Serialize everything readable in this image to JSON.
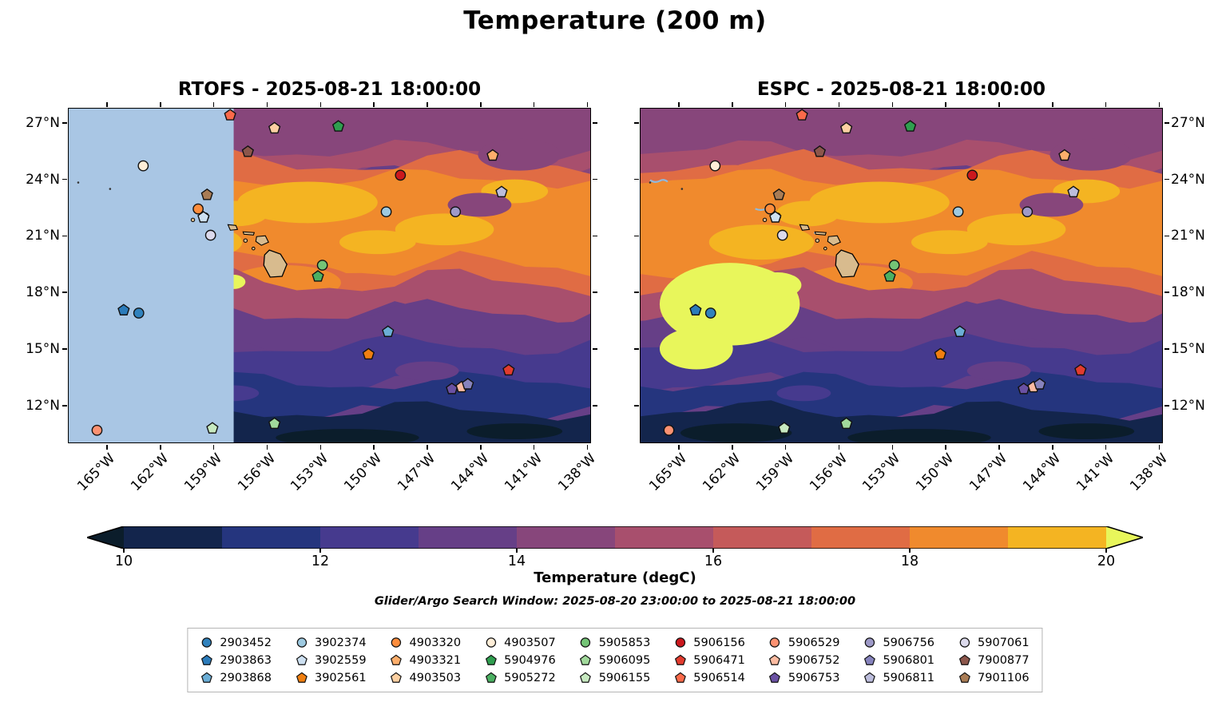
{
  "figure": {
    "title": "Temperature (200 m)",
    "search_window": "Glider/Argo Search Window: 2025-08-20 23:00:00 to 2025-08-21 18:00:00"
  },
  "panels": [
    {
      "id": "rtofs",
      "title": "RTOFS - 2025-08-21 18:00:00",
      "no_data_mask": {
        "east_limit_lon_w": 157.9,
        "color": "#a9c6e4"
      }
    },
    {
      "id": "espc",
      "title": "ESPC - 2025-08-21 18:00:00"
    }
  ],
  "axes": {
    "lon_tick_labels": [
      "165°W",
      "162°W",
      "159°W",
      "156°W",
      "153°W",
      "150°W",
      "147°W",
      "144°W",
      "141°W",
      "138°W"
    ],
    "lon_tick_values_w": [
      165,
      162,
      159,
      156,
      153,
      150,
      147,
      144,
      141,
      138
    ],
    "lat_tick_labels": [
      "12°N",
      "15°N",
      "18°N",
      "21°N",
      "24°N",
      "27°N"
    ],
    "lat_tick_values_n": [
      12,
      15,
      18,
      21,
      24,
      27
    ],
    "lon_range_w": [
      167.2,
      137.8
    ],
    "lat_range_n": [
      10.0,
      27.8
    ]
  },
  "colorbar": {
    "label": "Temperature (degC)",
    "tick_labels": [
      "10",
      "12",
      "14",
      "16",
      "18",
      "20"
    ],
    "tick_values": [
      10,
      12,
      14,
      16,
      18,
      20
    ],
    "range": [
      10,
      20
    ],
    "extend": "both",
    "under_color": "#0b1d2b",
    "over_color": "#e8f65b",
    "band_colors": [
      "#13254c",
      "#25357e",
      "#463a8e",
      "#663f87",
      "#87467b",
      "#a84f6d",
      "#c55a5a",
      "#e06c44",
      "#f08a2d",
      "#f4b422"
    ]
  },
  "legend": {
    "entries": [
      {
        "id": "2903452",
        "shape": "circle",
        "color": "#3182bd"
      },
      {
        "id": "2903863",
        "shape": "pentagon",
        "color": "#2b7bba"
      },
      {
        "id": "2903868",
        "shape": "pentagon",
        "color": "#6baed6"
      },
      {
        "id": "3902374",
        "shape": "circle",
        "color": "#9ecae1"
      },
      {
        "id": "3902559",
        "shape": "pentagon",
        "color": "#cde0f1"
      },
      {
        "id": "3902561",
        "shape": "pentagon",
        "color": "#f07f10"
      },
      {
        "id": "4903320",
        "shape": "circle",
        "color": "#fd8d3c"
      },
      {
        "id": "4903321",
        "shape": "pentagon",
        "color": "#fdae6b"
      },
      {
        "id": "4903503",
        "shape": "pentagon",
        "color": "#fdd0a2"
      },
      {
        "id": "4903507",
        "shape": "circle",
        "color": "#feeed8"
      },
      {
        "id": "5904976",
        "shape": "pentagon",
        "color": "#2f9e4f"
      },
      {
        "id": "5905272",
        "shape": "pentagon",
        "color": "#4bb062"
      },
      {
        "id": "5905853",
        "shape": "circle",
        "color": "#74c476"
      },
      {
        "id": "5906095",
        "shape": "pentagon",
        "color": "#a1d99b"
      },
      {
        "id": "5906155",
        "shape": "pentagon",
        "color": "#c7e9c0"
      },
      {
        "id": "5906156",
        "shape": "circle",
        "color": "#cb181d"
      },
      {
        "id": "5906471",
        "shape": "pentagon",
        "color": "#e23b2e"
      },
      {
        "id": "5906514",
        "shape": "pentagon",
        "color": "#fb6a4a"
      },
      {
        "id": "5906529",
        "shape": "circle",
        "color": "#fc9272"
      },
      {
        "id": "5906752",
        "shape": "pentagon",
        "color": "#fcbba1"
      },
      {
        "id": "5906753",
        "shape": "pentagon",
        "color": "#6a51a3"
      },
      {
        "id": "5906756",
        "shape": "circle",
        "color": "#9e9ac8"
      },
      {
        "id": "5906801",
        "shape": "pentagon",
        "color": "#8683bd"
      },
      {
        "id": "5906811",
        "shape": "pentagon",
        "color": "#bcbddc"
      },
      {
        "id": "5907061",
        "shape": "circle",
        "color": "#dcdaec"
      },
      {
        "id": "7900877",
        "shape": "pentagon",
        "color": "#8c564b"
      },
      {
        "id": "7901106",
        "shape": "pentagon",
        "color": "#a97c55"
      }
    ]
  },
  "chart_data": {
    "type": "heatmap",
    "subtype": "filled-contour ocean temperature maps (2 models) with Argo/glider platform markers",
    "variable": "Temperature",
    "depth": "200 m",
    "units": "degC",
    "valid_time": "2025-08-21 18:00:00",
    "models": [
      "RTOFS",
      "ESPC"
    ],
    "value_range": [
      10,
      20
    ],
    "colorbar_ticks": [
      10,
      12,
      14,
      16,
      18,
      20
    ],
    "lon_extent_w": [
      167.2,
      137.8
    ],
    "lat_extent_n": [
      10.0,
      27.8
    ],
    "spatial_pattern": "Warm 17-20+ degC orange/yellow band spans ~18-27N (warmest yellow patches near 158-165W); temperature drops southward through purple 13-15 degC around 13-17N to dark <11 degC water south of ~13N; Hawaiian Islands at ~155-160W, 19-22N; RTOFS field masked (light blue, no data) west of ~158W",
    "markers": [
      {
        "id": "5906514",
        "lon_w": 158.1,
        "lat_n": 27.45
      },
      {
        "id": "4903503",
        "lon_w": 155.6,
        "lat_n": 26.75
      },
      {
        "id": "5904976",
        "lon_w": 152.0,
        "lat_n": 26.85
      },
      {
        "id": "7900877",
        "lon_w": 157.1,
        "lat_n": 25.5
      },
      {
        "id": "4903507",
        "lon_w": 163.0,
        "lat_n": 24.75
      },
      {
        "id": "5906156",
        "lon_w": 148.5,
        "lat_n": 24.25
      },
      {
        "id": "4903321",
        "lon_w": 143.3,
        "lat_n": 25.3
      },
      {
        "id": "7901106",
        "lon_w": 159.4,
        "lat_n": 23.2
      },
      {
        "id": "5906811",
        "lon_w": 142.8,
        "lat_n": 23.35
      },
      {
        "id": "4903320",
        "lon_w": 159.9,
        "lat_n": 22.45
      },
      {
        "id": "3902559",
        "lon_w": 159.6,
        "lat_n": 22.0
      },
      {
        "id": "3902374",
        "lon_w": 149.3,
        "lat_n": 22.3
      },
      {
        "id": "5906756",
        "lon_w": 145.4,
        "lat_n": 22.3
      },
      {
        "id": "5907061",
        "lon_w": 159.2,
        "lat_n": 21.05
      },
      {
        "id": "5905853",
        "lon_w": 152.9,
        "lat_n": 19.45
      },
      {
        "id": "5905272",
        "lon_w": 153.15,
        "lat_n": 18.85
      },
      {
        "id": "2903863",
        "lon_w": 164.1,
        "lat_n": 17.05
      },
      {
        "id": "2903452",
        "lon_w": 163.25,
        "lat_n": 16.9
      },
      {
        "id": "2903868",
        "lon_w": 149.2,
        "lat_n": 15.9
      },
      {
        "id": "3902561",
        "lon_w": 150.3,
        "lat_n": 14.7
      },
      {
        "id": "5906471",
        "lon_w": 142.4,
        "lat_n": 13.85
      },
      {
        "id": "5906753",
        "lon_w": 145.6,
        "lat_n": 12.85
      },
      {
        "id": "5906752",
        "lon_w": 145.05,
        "lat_n": 12.95
      },
      {
        "id": "5906801",
        "lon_w": 144.7,
        "lat_n": 13.1
      },
      {
        "id": "5906529",
        "lon_w": 165.6,
        "lat_n": 10.65
      },
      {
        "id": "5906155",
        "lon_w": 159.1,
        "lat_n": 10.75
      },
      {
        "id": "5906095",
        "lon_w": 155.6,
        "lat_n": 11.0
      }
    ]
  }
}
